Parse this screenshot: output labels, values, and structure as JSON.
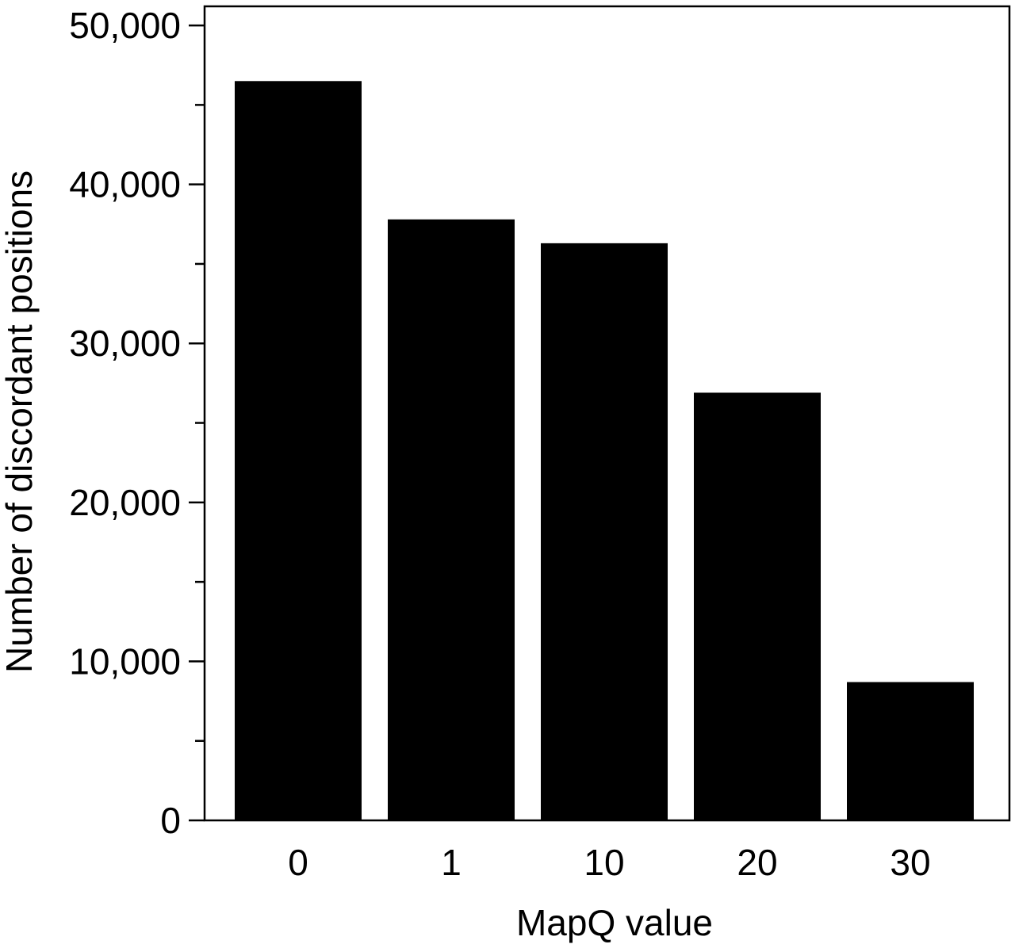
{
  "chart_data": {
    "type": "bar",
    "title": "",
    "xlabel": "MapQ value",
    "ylabel": "Number of discordant positions",
    "categories": [
      "0",
      "1",
      "10",
      "20",
      "30"
    ],
    "values": [
      46500,
      37800,
      36300,
      26900,
      8700
    ],
    "ylim": [
      0,
      51200
    ],
    "y_major_ticks": [
      0,
      10000,
      20000,
      30000,
      40000,
      50000
    ],
    "y_tick_labels": [
      "0",
      "10,000",
      "20,000",
      "30,000",
      "40,000",
      "50,000"
    ],
    "y_minor_ticks": [
      5000,
      15000,
      25000,
      35000,
      45000
    ],
    "grid": false,
    "legend": "none",
    "bar_color": "#000000"
  }
}
